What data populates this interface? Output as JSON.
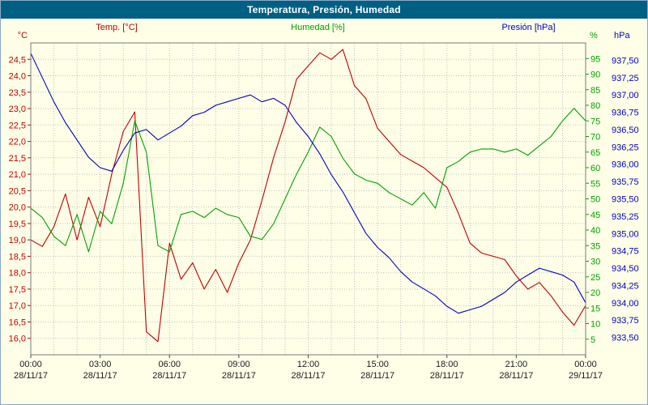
{
  "window": {
    "title": "Temperatura, Presión, Humedad"
  },
  "legend": {
    "temperature": "Temp. [°C]",
    "humidity": "Humedad [%]",
    "pressure": "Presión [hPa]"
  },
  "colors": {
    "temperature": "#C00000",
    "humidity": "#00A000",
    "pressure": "#0000C0",
    "grid": "#BFBFBF",
    "title_bar": "#006083",
    "background": "#FFFFE8"
  },
  "chart_data": {
    "type": "line",
    "title": "Temperatura, Presión, Humedad",
    "grid": "dotted",
    "x_tick_hours": [
      0,
      3,
      6,
      9,
      12,
      15,
      18,
      21,
      24
    ],
    "x_tick_times": [
      "00:00",
      "03:00",
      "06:00",
      "09:00",
      "12:00",
      "15:00",
      "18:00",
      "21:00",
      "00:00"
    ],
    "x_tick_dates": [
      "28/11/17",
      "28/11/17",
      "28/11/17",
      "28/11/17",
      "28/11/17",
      "28/11/17",
      "28/11/17",
      "28/11/17",
      "29/11/17"
    ],
    "x_hours": [
      0,
      0.5,
      1,
      1.5,
      2,
      2.5,
      3,
      3.5,
      4,
      4.5,
      5,
      5.5,
      6,
      6.5,
      7,
      7.5,
      8,
      8.5,
      9,
      9.5,
      10,
      10.5,
      11,
      11.5,
      12,
      12.5,
      13,
      13.5,
      14,
      14.5,
      15,
      15.5,
      16,
      16.5,
      17,
      17.5,
      18,
      18.5,
      19,
      19.5,
      20,
      20.5,
      21,
      21.5,
      22,
      22.5,
      23,
      23.5,
      24
    ],
    "axes": {
      "temp": {
        "unit": "°C",
        "min": 15.5,
        "max": 25.0,
        "tick_values": [
          24.5,
          24.0,
          23.5,
          23.0,
          22.5,
          22.0,
          21.5,
          21.0,
          20.5,
          20.0,
          19.5,
          19.0,
          18.5,
          18.0,
          17.5,
          17.0,
          16.5,
          16.0
        ],
        "tick_labels": [
          "24,5",
          "24,0",
          "23,5",
          "23,0",
          "22,5",
          "22,0",
          "21,5",
          "21,0",
          "20,5",
          "20,0",
          "19,5",
          "19,0",
          "18,5",
          "18,0",
          "17,5",
          "17,0",
          "16,5",
          "16,0"
        ]
      },
      "hum": {
        "unit": "%",
        "min": 0,
        "max": 100,
        "tick_values": [
          95,
          90,
          85,
          80,
          75,
          70,
          65,
          60,
          55,
          50,
          45,
          40,
          35,
          30,
          25,
          20,
          15,
          10,
          5
        ],
        "tick_labels": [
          "95",
          "90",
          "85",
          "80",
          "75",
          "70",
          "65",
          "60",
          "55",
          "50",
          "45",
          "40",
          "35",
          "30",
          "25",
          "20",
          "15",
          "10",
          "5"
        ]
      },
      "pres": {
        "unit": "hPa",
        "min": 933.25,
        "max": 937.75,
        "tick_values": [
          937.5,
          937.25,
          937.0,
          936.75,
          936.5,
          936.25,
          936.0,
          935.75,
          935.5,
          935.25,
          935.0,
          934.75,
          934.5,
          934.25,
          934.0,
          933.75,
          933.5
        ],
        "tick_labels": [
          "937,50",
          "937,25",
          "937,00",
          "936,75",
          "936,50",
          "936,25",
          "936,00",
          "935,75",
          "935,50",
          "935,25",
          "935,00",
          "934,75",
          "934,50",
          "934,25",
          "934,00",
          "933,75",
          "933,50"
        ]
      }
    },
    "series": [
      {
        "id": "temperature",
        "name": "Temp. [°C]",
        "axis": "temp",
        "color": "#C00000",
        "values": [
          19.0,
          18.8,
          19.4,
          20.4,
          19.0,
          20.3,
          19.4,
          21.0,
          22.3,
          22.9,
          16.2,
          15.9,
          18.9,
          17.8,
          18.3,
          17.5,
          18.1,
          17.4,
          18.3,
          19.0,
          20.2,
          21.5,
          22.6,
          23.9,
          24.3,
          24.7,
          24.5,
          24.8,
          23.7,
          23.3,
          22.4,
          22.0,
          21.6,
          21.4,
          21.2,
          20.9,
          20.6,
          19.8,
          18.9,
          18.6,
          18.5,
          18.4,
          17.9,
          17.5,
          17.7,
          17.3,
          16.8,
          16.4,
          17.0
        ]
      },
      {
        "id": "humidity",
        "name": "Humedad [%]",
        "axis": "hum",
        "color": "#00A000",
        "values": [
          47,
          44,
          38,
          35,
          45,
          33,
          46,
          42,
          55,
          75,
          65,
          35,
          33,
          45,
          46,
          44,
          47,
          45,
          44,
          38,
          37,
          42,
          50,
          58,
          65,
          73,
          70,
          63,
          58,
          56,
          55,
          52,
          50,
          48,
          52,
          47,
          60,
          62,
          65,
          66,
          66,
          65,
          66,
          64,
          67,
          70,
          75,
          79,
          75
        ]
      },
      {
        "id": "pressure",
        "name": "Presión [hPa]",
        "axis": "pres",
        "color": "#0000C0",
        "values": [
          937.6,
          937.25,
          936.9,
          936.6,
          936.35,
          936.1,
          935.95,
          935.9,
          936.2,
          936.45,
          936.5,
          936.35,
          936.45,
          936.55,
          936.7,
          936.75,
          936.85,
          936.9,
          936.95,
          937.0,
          936.9,
          936.95,
          936.85,
          936.6,
          936.4,
          936.15,
          935.85,
          935.6,
          935.3,
          935.0,
          934.8,
          934.65,
          934.45,
          934.3,
          934.2,
          934.1,
          933.95,
          933.85,
          933.9,
          933.95,
          934.05,
          934.15,
          934.3,
          934.4,
          934.5,
          934.45,
          934.4,
          934.3,
          934.0
        ]
      }
    ]
  }
}
